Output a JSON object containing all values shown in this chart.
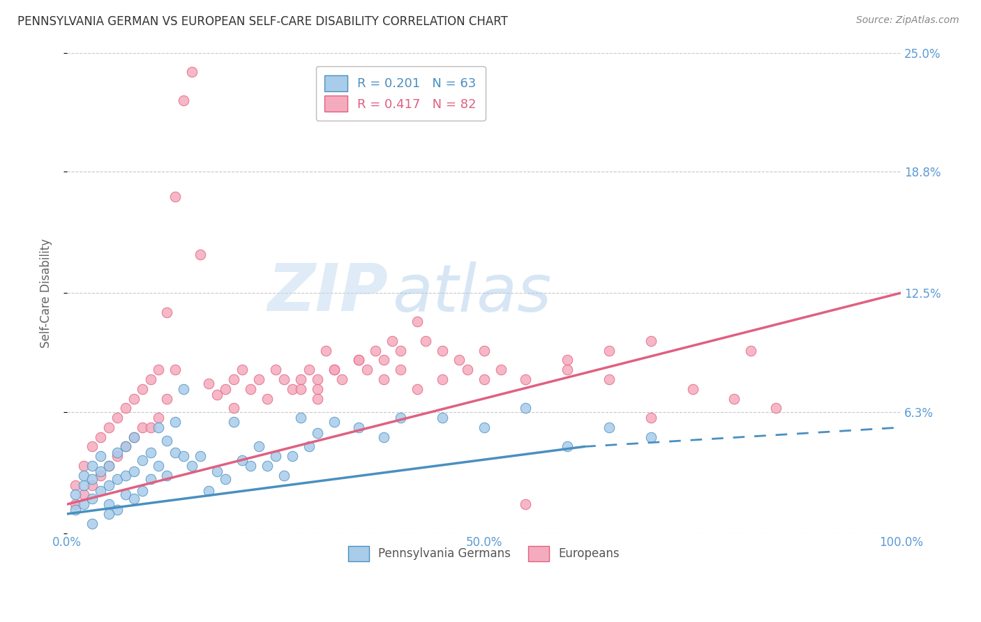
{
  "title": "PENNSYLVANIA GERMAN VS EUROPEAN SELF-CARE DISABILITY CORRELATION CHART",
  "source": "Source: ZipAtlas.com",
  "ylabel": "Self-Care Disability",
  "xlim": [
    0,
    100
  ],
  "ylim": [
    0,
    25
  ],
  "yticks": [
    0,
    6.3,
    12.5,
    18.8,
    25.0
  ],
  "ytick_labels": [
    "",
    "6.3%",
    "12.5%",
    "18.8%",
    "25.0%"
  ],
  "xticks": [
    0,
    25,
    50,
    75,
    100
  ],
  "xtick_labels": [
    "0.0%",
    "",
    "50.0%",
    "",
    "100.0%"
  ],
  "blue_color": "#A8CCEA",
  "pink_color": "#F5ABBE",
  "blue_edge_color": "#4A8FC0",
  "pink_edge_color": "#E06080",
  "blue_line_color": "#4A8FC0",
  "pink_line_color": "#E06080",
  "axis_tick_color": "#5B9BD5",
  "background_color": "#FFFFFF",
  "legend_r1": "R = 0.201",
  "legend_n1": "N = 63",
  "legend_r2": "R = 0.417",
  "legend_n2": "N = 82",
  "blue_scatter_x": [
    1,
    1,
    2,
    2,
    2,
    3,
    3,
    3,
    4,
    4,
    4,
    5,
    5,
    5,
    6,
    6,
    6,
    7,
    7,
    7,
    8,
    8,
    8,
    9,
    9,
    10,
    10,
    11,
    11,
    12,
    12,
    13,
    13,
    14,
    14,
    15,
    16,
    17,
    18,
    19,
    20,
    21,
    22,
    23,
    24,
    25,
    26,
    27,
    28,
    29,
    30,
    32,
    35,
    38,
    40,
    45,
    50,
    55,
    60,
    65,
    70,
    3,
    5
  ],
  "blue_scatter_y": [
    1.2,
    2.0,
    1.5,
    2.5,
    3.0,
    1.8,
    2.8,
    3.5,
    2.2,
    3.2,
    4.0,
    1.5,
    2.5,
    3.5,
    1.2,
    2.8,
    4.2,
    2.0,
    3.0,
    4.5,
    1.8,
    3.2,
    5.0,
    2.2,
    3.8,
    2.8,
    4.2,
    3.5,
    5.5,
    3.0,
    4.8,
    4.2,
    5.8,
    7.5,
    4.0,
    3.5,
    4.0,
    2.2,
    3.2,
    2.8,
    5.8,
    3.8,
    3.5,
    4.5,
    3.5,
    4.0,
    3.0,
    4.0,
    6.0,
    4.5,
    5.2,
    5.8,
    5.5,
    5.0,
    6.0,
    6.0,
    5.5,
    6.5,
    4.5,
    5.5,
    5.0,
    0.5,
    1.0
  ],
  "pink_scatter_x": [
    1,
    1,
    2,
    2,
    3,
    3,
    4,
    4,
    5,
    5,
    6,
    6,
    7,
    7,
    8,
    8,
    9,
    9,
    10,
    10,
    11,
    11,
    12,
    12,
    13,
    13,
    14,
    15,
    16,
    17,
    18,
    19,
    20,
    20,
    21,
    22,
    23,
    24,
    25,
    26,
    27,
    28,
    29,
    30,
    31,
    32,
    33,
    35,
    36,
    37,
    38,
    39,
    40,
    42,
    43,
    45,
    47,
    50,
    52,
    55,
    60,
    65,
    70,
    75,
    80,
    85,
    28,
    30,
    30,
    32,
    35,
    38,
    40,
    42,
    45,
    48,
    50,
    55,
    60,
    65,
    70,
    82
  ],
  "pink_scatter_y": [
    1.5,
    2.5,
    2.0,
    3.5,
    2.5,
    4.5,
    3.0,
    5.0,
    3.5,
    5.5,
    4.0,
    6.0,
    4.5,
    6.5,
    5.0,
    7.0,
    5.5,
    7.5,
    5.5,
    8.0,
    6.0,
    8.5,
    7.0,
    11.5,
    8.5,
    17.5,
    22.5,
    24.0,
    14.5,
    7.8,
    7.2,
    7.5,
    8.0,
    6.5,
    8.5,
    7.5,
    8.0,
    7.0,
    8.5,
    8.0,
    7.5,
    8.0,
    8.5,
    7.5,
    9.5,
    8.5,
    8.0,
    9.0,
    8.5,
    9.5,
    9.0,
    10.0,
    9.5,
    11.0,
    10.0,
    9.5,
    9.0,
    9.5,
    8.5,
    8.0,
    8.5,
    8.0,
    6.0,
    7.5,
    7.0,
    6.5,
    7.5,
    8.0,
    7.0,
    8.5,
    9.0,
    8.0,
    8.5,
    7.5,
    8.0,
    8.5,
    8.0,
    1.5,
    9.0,
    9.5,
    10.0,
    9.5
  ],
  "blue_trend_x0": 0,
  "blue_trend_x1": 62,
  "blue_trend_y0": 1.0,
  "blue_trend_y1": 4.5,
  "blue_dash_x0": 62,
  "blue_dash_x1": 100,
  "blue_dash_y0": 4.5,
  "blue_dash_y1": 5.5,
  "pink_trend_x0": 0,
  "pink_trend_x1": 100,
  "pink_trend_y0": 1.5,
  "pink_trend_y1": 12.5,
  "watermark_zip": "ZIP",
  "watermark_atlas": "atlas",
  "grid_color": "#C8C8C8",
  "title_color": "#333333",
  "source_color": "#888888"
}
